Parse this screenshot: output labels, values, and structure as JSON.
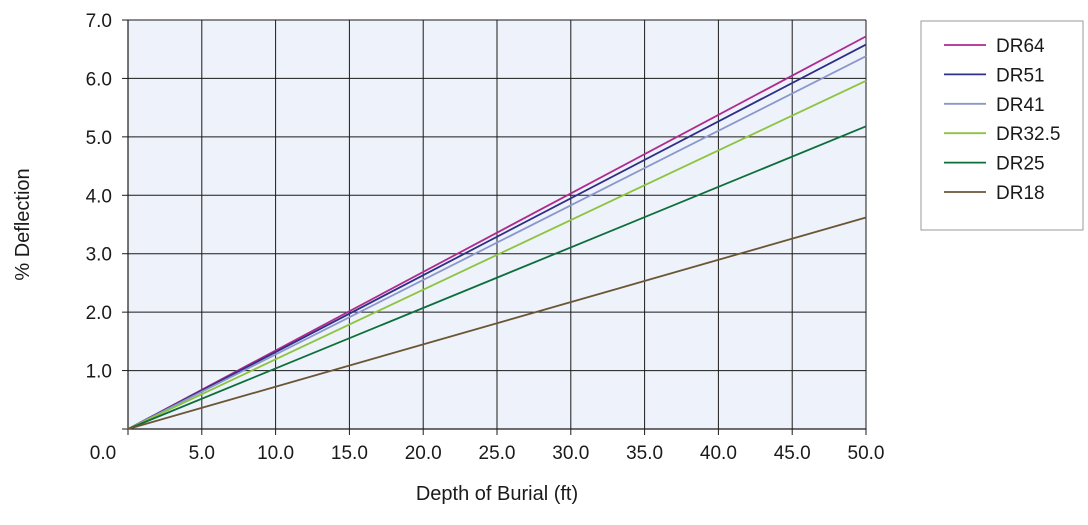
{
  "chart_data": {
    "type": "line",
    "title": "",
    "xlabel": "Depth of Burial (ft)",
    "ylabel": "% Deflection",
    "xlim": [
      0,
      50
    ],
    "ylim": [
      0,
      7
    ],
    "grid": true,
    "legend_position": "right",
    "plot_background": "#eef2fa",
    "x_ticks": [
      0,
      5,
      10,
      15,
      20,
      25,
      30,
      35,
      40,
      45,
      50
    ],
    "x_tick_labels": [
      "0.0",
      "5.0",
      "10.0",
      "15.0",
      "20.0",
      "25.0",
      "30.0",
      "35.0",
      "40.0",
      "45.0",
      "50.0"
    ],
    "y_ticks": [
      1,
      2,
      3,
      4,
      5,
      6,
      7
    ],
    "y_tick_labels": [
      "1.0",
      "2.0",
      "3.0",
      "4.0",
      "5.0",
      "6.0",
      "7.0"
    ],
    "series": [
      {
        "name": "DR64",
        "color": "#b02a8e",
        "x": [
          0,
          50
        ],
        "y": [
          0,
          6.72
        ]
      },
      {
        "name": "DR51",
        "color": "#2e2f86",
        "x": [
          0,
          50
        ],
        "y": [
          0,
          6.58
        ]
      },
      {
        "name": "DR41",
        "color": "#8a97cc",
        "x": [
          0,
          50
        ],
        "y": [
          0,
          6.38
        ]
      },
      {
        "name": "DR32.5",
        "color": "#8cc43f",
        "x": [
          0,
          50
        ],
        "y": [
          0,
          5.96
        ]
      },
      {
        "name": "DR25",
        "color": "#0d6e3c",
        "x": [
          0,
          50
        ],
        "y": [
          0,
          5.18
        ]
      },
      {
        "name": "DR18",
        "color": "#6b5535",
        "x": [
          0,
          50
        ],
        "y": [
          0,
          3.62
        ]
      }
    ]
  }
}
